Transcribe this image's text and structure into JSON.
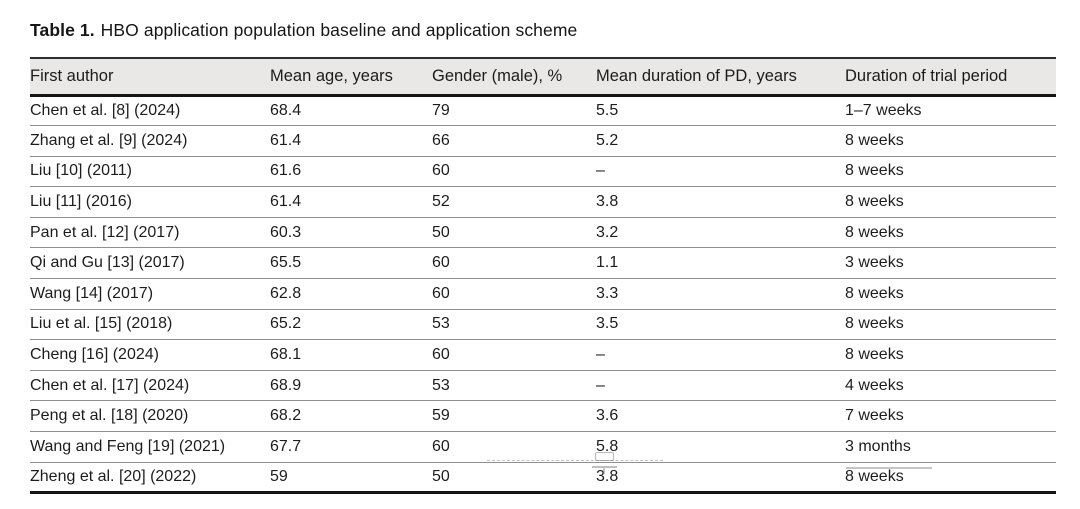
{
  "caption": {
    "label": "Table 1.",
    "text": "HBO application population baseline and application scheme"
  },
  "table": {
    "columns": [
      "First author",
      "Mean age, years",
      "Gender (male), %",
      "Mean duration of PD, years",
      "Duration of trial period"
    ],
    "rows": [
      [
        "Chen et al. [8] (2024)",
        "68.4",
        "79",
        "5.5",
        "1–7 weeks"
      ],
      [
        "Zhang et al. [9] (2024)",
        "61.4",
        "66",
        "5.2",
        "8 weeks"
      ],
      [
        "Liu [10] (2011)",
        "61.6",
        "60",
        "–",
        "8 weeks"
      ],
      [
        "Liu [11] (2016)",
        "61.4",
        "52",
        "3.8",
        "8 weeks"
      ],
      [
        "Pan et al. [12] (2017)",
        "60.3",
        "50",
        "3.2",
        "8 weeks"
      ],
      [
        "Qi and Gu [13] (2017)",
        "65.5",
        "60",
        "1.1",
        "3 weeks"
      ],
      [
        "Wang [14] (2017)",
        "62.8",
        "60",
        "3.3",
        "8 weeks"
      ],
      [
        "Liu et al. [15] (2018)",
        "65.2",
        "53",
        "3.5",
        "8 weeks"
      ],
      [
        "Cheng [16] (2024)",
        "68.1",
        "60",
        "–",
        "8 weeks"
      ],
      [
        "Chen et al. [17] (2024)",
        "68.9",
        "53",
        "–",
        "4 weeks"
      ],
      [
        "Peng et al. [18] (2020)",
        "68.2",
        "59",
        "3.6",
        "7 weeks"
      ],
      [
        "Wang and Feng [19] (2021)",
        "67.7",
        "60",
        "5.8",
        "3 months"
      ],
      [
        "Zheng et al. [20] (2022)",
        "59",
        "50",
        "3.8",
        "8 weeks"
      ]
    ]
  }
}
